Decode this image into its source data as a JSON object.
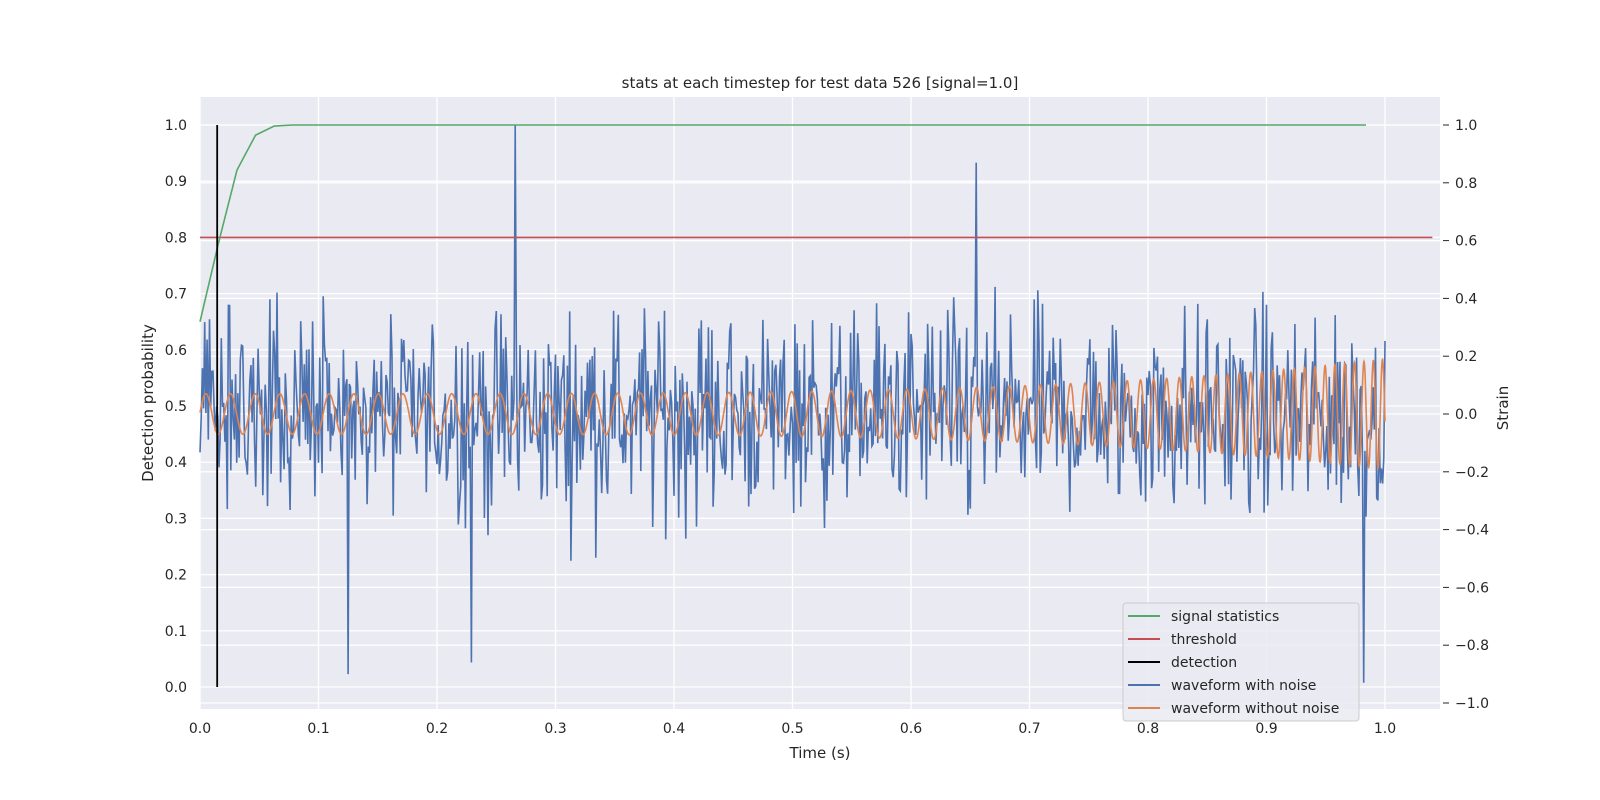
{
  "chart_data": {
    "type": "line",
    "title": "stats at each timestep for test data 526 [signal=1.0]",
    "xlabel": "Time (s)",
    "ylabel": "Detection probability",
    "y2label": "Strain",
    "xlim": [
      0.0,
      1.05
    ],
    "ylim": [
      -0.045,
      1.045
    ],
    "y2lim": [
      -1.04,
      1.1
    ],
    "xticks": [
      "0.0",
      "0.1",
      "0.2",
      "0.3",
      "0.4",
      "0.5",
      "0.6",
      "0.7",
      "0.8",
      "0.9",
      "1.0"
    ],
    "yticks": [
      "0.0",
      "0.1",
      "0.2",
      "0.3",
      "0.4",
      "0.5",
      "0.6",
      "0.7",
      "0.8",
      "0.9",
      "1.0"
    ],
    "y2ticks": [
      "−1.0",
      "−0.8",
      "−0.6",
      "−0.4",
      "−0.2",
      "0.0",
      "0.2",
      "0.4",
      "0.6",
      "0.8",
      "1.0"
    ],
    "grid": true,
    "legend_position": "lower-right",
    "series": [
      {
        "name": "signal statistics",
        "color": "#55a868",
        "axis": "left",
        "x": [
          0.0,
          0.0156,
          0.0312,
          0.0469,
          0.0625,
          0.078,
          0.1,
          0.2,
          0.3,
          0.4,
          0.5,
          0.6,
          0.7,
          0.8,
          0.9,
          0.984
        ],
        "y": [
          0.65,
          0.79,
          0.92,
          0.982,
          0.998,
          1.0,
          1.0,
          1.0,
          1.0,
          1.0,
          1.0,
          1.0,
          1.0,
          1.0,
          1.0,
          1.0
        ]
      },
      {
        "name": "threshold",
        "color": "#c44e52",
        "axis": "left",
        "x": [
          0.0,
          1.04
        ],
        "y": [
          0.8,
          0.8
        ]
      },
      {
        "name": "detection",
        "color": "#000000",
        "axis": "left",
        "x": [
          0.0145,
          0.0145
        ],
        "y": [
          0.0,
          1.0
        ]
      },
      {
        "name": "waveform with noise",
        "color": "#4c72b0",
        "axis": "right",
        "x_range": [
          0.0,
          1.0
        ],
        "y_range": [
          -0.93,
          1.0
        ],
        "peaks": [
          {
            "x": 0.125,
            "y": -0.9
          },
          {
            "x": 0.229,
            "y": -0.86
          },
          {
            "x": 0.266,
            "y": 1.0
          },
          {
            "x": 0.655,
            "y": 0.87
          },
          {
            "x": 0.982,
            "y": -0.93
          }
        ]
      },
      {
        "name": "waveform without noise",
        "color": "#dd8452",
        "axis": "right",
        "x_range": [
          0.0,
          1.0
        ],
        "amplitude_start": 0.07,
        "amplitude_end": 0.19,
        "frequency_start_hz": 48,
        "frequency_end_hz": 130
      }
    ]
  }
}
